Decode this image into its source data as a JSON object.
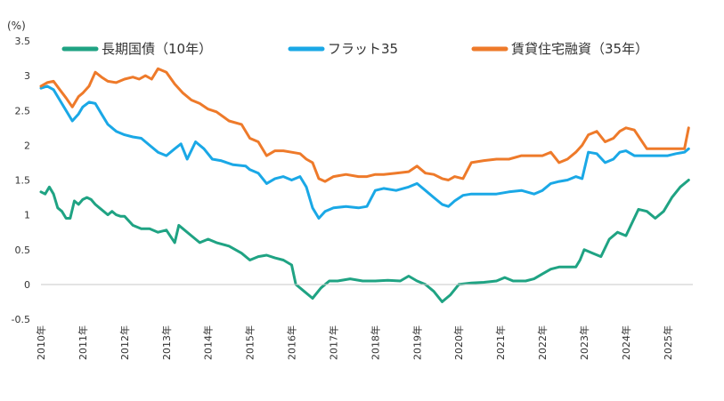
{
  "chart_data": {
    "type": "line",
    "unit_label": "(%)",
    "ylim": [
      -0.5,
      3.5
    ],
    "yticks": [
      "3.5",
      "3",
      "2.5",
      "2",
      "1.5",
      "1",
      "0.5",
      "0",
      "-0.5"
    ],
    "xlim": [
      2010.0,
      2025.6
    ],
    "x_tick_labels": [
      "2010年",
      "2011年",
      "2012年",
      "2013年",
      "2014年",
      "2015年",
      "2016年",
      "2017年",
      "2018年",
      "2019年",
      "2020年",
      "2021年",
      "2022年",
      "2023年",
      "2024年",
      "2025年"
    ],
    "x_tick_years": [
      2010,
      2011,
      2012,
      2013,
      2014,
      2015,
      2016,
      2017,
      2018,
      2019,
      2020,
      2021,
      2022,
      2023,
      2024,
      2025
    ],
    "grid": false,
    "legend_position": "top",
    "series": [
      {
        "name": "長期国債（10年）",
        "color": "#1fa383",
        "x": [
          2010.0,
          2010.1,
          2010.2,
          2010.3,
          2010.4,
          2010.5,
          2010.6,
          2010.7,
          2010.8,
          2010.9,
          2011.0,
          2011.1,
          2011.2,
          2011.3,
          2011.4,
          2011.5,
          2011.6,
          2011.7,
          2011.8,
          2011.9,
          2012.0,
          2012.2,
          2012.4,
          2012.6,
          2012.8,
          2013.0,
          2013.2,
          2013.3,
          2013.4,
          2013.6,
          2013.8,
          2014.0,
          2014.2,
          2014.5,
          2014.8,
          2015.0,
          2015.2,
          2015.4,
          2015.6,
          2015.8,
          2016.0,
          2016.1,
          2016.3,
          2016.5,
          2016.7,
          2016.9,
          2017.1,
          2017.4,
          2017.7,
          2018.0,
          2018.3,
          2018.6,
          2018.8,
          2019.0,
          2019.2,
          2019.4,
          2019.6,
          2019.8,
          2020.0,
          2020.3,
          2020.6,
          2020.9,
          2021.1,
          2021.3,
          2021.6,
          2021.8,
          2022.0,
          2022.2,
          2022.4,
          2022.6,
          2022.8,
          2022.9,
          2023.0,
          2023.2,
          2023.4,
          2023.6,
          2023.8,
          2024.0,
          2024.3,
          2024.5,
          2024.7,
          2024.9,
          2025.1,
          2025.3,
          2025.5
        ],
        "values": [
          1.33,
          1.3,
          1.4,
          1.3,
          1.1,
          1.05,
          0.95,
          0.95,
          1.2,
          1.15,
          1.22,
          1.25,
          1.22,
          1.15,
          1.1,
          1.05,
          1.0,
          1.05,
          1.0,
          0.98,
          0.98,
          0.85,
          0.8,
          0.8,
          0.75,
          0.78,
          0.6,
          0.85,
          0.8,
          0.7,
          0.6,
          0.65,
          0.6,
          0.55,
          0.45,
          0.35,
          0.4,
          0.42,
          0.38,
          0.35,
          0.28,
          0.0,
          -0.1,
          -0.2,
          -0.05,
          0.05,
          0.05,
          0.08,
          0.05,
          0.05,
          0.06,
          0.05,
          0.12,
          0.05,
          0.0,
          -0.1,
          -0.25,
          -0.15,
          0.0,
          0.02,
          0.03,
          0.05,
          0.1,
          0.05,
          0.05,
          0.08,
          0.15,
          0.22,
          0.25,
          0.25,
          0.25,
          0.35,
          0.5,
          0.45,
          0.4,
          0.65,
          0.75,
          0.7,
          1.08,
          1.05,
          0.95,
          1.05,
          1.25,
          1.4,
          1.5
        ]
      },
      {
        "name": "フラット35",
        "color": "#1aa8e6",
        "x": [
          2010.0,
          2010.15,
          2010.3,
          2010.45,
          2010.6,
          2010.75,
          2010.9,
          2011.0,
          2011.15,
          2011.3,
          2011.45,
          2011.6,
          2011.8,
          2012.0,
          2012.2,
          2012.4,
          2012.6,
          2012.8,
          2013.0,
          2013.2,
          2013.35,
          2013.5,
          2013.7,
          2013.9,
          2014.1,
          2014.3,
          2014.6,
          2014.9,
          2015.0,
          2015.2,
          2015.4,
          2015.6,
          2015.8,
          2016.0,
          2016.2,
          2016.35,
          2016.5,
          2016.65,
          2016.8,
          2017.0,
          2017.3,
          2017.6,
          2017.8,
          2018.0,
          2018.2,
          2018.5,
          2018.8,
          2019.0,
          2019.2,
          2019.4,
          2019.6,
          2019.75,
          2019.9,
          2020.1,
          2020.3,
          2020.6,
          2020.9,
          2021.2,
          2021.5,
          2021.8,
          2022.0,
          2022.2,
          2022.4,
          2022.6,
          2022.8,
          2022.95,
          2023.1,
          2023.3,
          2023.5,
          2023.7,
          2023.85,
          2024.0,
          2024.2,
          2024.5,
          2024.8,
          2025.0,
          2025.2,
          2025.4,
          2025.5
        ],
        "values": [
          2.82,
          2.85,
          2.8,
          2.65,
          2.5,
          2.35,
          2.45,
          2.55,
          2.62,
          2.6,
          2.45,
          2.3,
          2.2,
          2.15,
          2.12,
          2.1,
          2.0,
          1.9,
          1.85,
          1.95,
          2.02,
          1.8,
          2.05,
          1.95,
          1.8,
          1.78,
          1.72,
          1.7,
          1.65,
          1.6,
          1.45,
          1.52,
          1.55,
          1.5,
          1.55,
          1.4,
          1.1,
          0.95,
          1.05,
          1.1,
          1.12,
          1.1,
          1.12,
          1.35,
          1.38,
          1.35,
          1.4,
          1.45,
          1.35,
          1.25,
          1.15,
          1.12,
          1.2,
          1.28,
          1.3,
          1.3,
          1.3,
          1.33,
          1.35,
          1.3,
          1.35,
          1.45,
          1.48,
          1.5,
          1.55,
          1.52,
          1.9,
          1.88,
          1.75,
          1.8,
          1.9,
          1.92,
          1.85,
          1.85,
          1.85,
          1.85,
          1.88,
          1.9,
          1.95
        ]
      },
      {
        "name": "賃貸住宅融資（35年）",
        "color": "#ee7a2a",
        "x": [
          2010.0,
          2010.15,
          2010.3,
          2010.45,
          2010.6,
          2010.75,
          2010.9,
          2011.0,
          2011.15,
          2011.3,
          2011.45,
          2011.6,
          2011.8,
          2012.0,
          2012.2,
          2012.35,
          2012.5,
          2012.65,
          2012.8,
          2013.0,
          2013.2,
          2013.4,
          2013.6,
          2013.8,
          2014.0,
          2014.2,
          2014.5,
          2014.8,
          2015.0,
          2015.2,
          2015.4,
          2015.6,
          2015.8,
          2016.0,
          2016.2,
          2016.35,
          2016.5,
          2016.65,
          2016.8,
          2017.0,
          2017.3,
          2017.6,
          2017.8,
          2018.0,
          2018.2,
          2018.5,
          2018.8,
          2019.0,
          2019.2,
          2019.4,
          2019.6,
          2019.75,
          2019.9,
          2020.1,
          2020.3,
          2020.6,
          2020.9,
          2021.2,
          2021.5,
          2021.8,
          2022.0,
          2022.2,
          2022.4,
          2022.6,
          2022.8,
          2022.95,
          2023.1,
          2023.3,
          2023.5,
          2023.7,
          2023.85,
          2024.0,
          2024.2,
          2024.5,
          2024.8,
          2025.0,
          2025.2,
          2025.4,
          2025.5
        ],
        "values": [
          2.85,
          2.9,
          2.92,
          2.8,
          2.68,
          2.55,
          2.7,
          2.75,
          2.85,
          3.05,
          2.98,
          2.92,
          2.9,
          2.95,
          2.98,
          2.95,
          3.0,
          2.95,
          3.1,
          3.05,
          2.88,
          2.75,
          2.65,
          2.6,
          2.52,
          2.48,
          2.35,
          2.3,
          2.1,
          2.05,
          1.85,
          1.92,
          1.92,
          1.9,
          1.88,
          1.8,
          1.75,
          1.52,
          1.48,
          1.55,
          1.58,
          1.55,
          1.55,
          1.58,
          1.58,
          1.6,
          1.62,
          1.7,
          1.6,
          1.58,
          1.52,
          1.5,
          1.55,
          1.52,
          1.75,
          1.78,
          1.8,
          1.8,
          1.85,
          1.85,
          1.85,
          1.9,
          1.75,
          1.8,
          1.9,
          2.0,
          2.15,
          2.2,
          2.05,
          2.1,
          2.2,
          2.25,
          2.22,
          1.95,
          1.95,
          1.95,
          1.95,
          1.95,
          2.25
        ]
      }
    ]
  }
}
